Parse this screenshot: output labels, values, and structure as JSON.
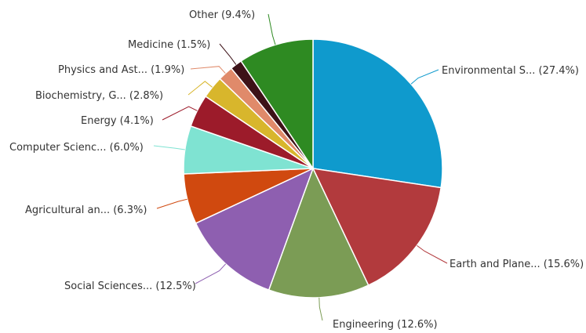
{
  "chart_data": {
    "type": "pie",
    "title": "",
    "slices": [
      {
        "label": "Environmental S... (27.4%)",
        "value": 27.4,
        "color": "#0f9acd"
      },
      {
        "label": "Earth and Plane... (15.6%)",
        "value": 15.6,
        "color": "#b23a3d"
      },
      {
        "label": "Engineering (12.6%)",
        "value": 12.6,
        "color": "#7b9c55"
      },
      {
        "label": "Social Sciences... (12.5%)",
        "value": 12.5,
        "color": "#8e5fb0"
      },
      {
        "label": "Agricultural an... (6.3%)",
        "value": 6.3,
        "color": "#d0490f"
      },
      {
        "label": "Computer Scienc... (6.0%)",
        "value": 6.0,
        "color": "#7fe3d2"
      },
      {
        "label": "Energy (4.1%)",
        "value": 4.1,
        "color": "#9c1b2a"
      },
      {
        "label": "Biochemistry, G... (2.8%)",
        "value": 2.8,
        "color": "#d8b62c"
      },
      {
        "label": "Physics and Ast... (1.9%)",
        "value": 1.9,
        "color": "#e08a6a"
      },
      {
        "label": "Medicine (1.5%)",
        "value": 1.5,
        "color": "#3d1218"
      },
      {
        "label": "Other (9.4%)",
        "value": 9.4,
        "color": "#2e8a22"
      }
    ]
  }
}
